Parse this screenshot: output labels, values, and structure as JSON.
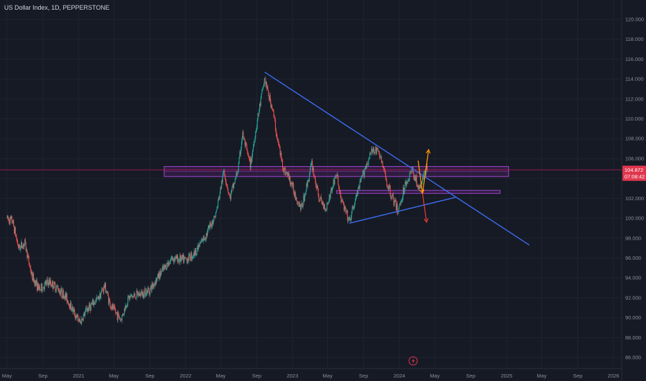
{
  "header": {
    "symbol_line": "US Dollar Index, 1D, PEPPERSTONE"
  },
  "colors": {
    "background": "#161a25",
    "grid": "#1f2430",
    "candle_up": "#26a69a",
    "candle_down": "#ef5350",
    "trendline": "#3d6df0",
    "zone_border": "#a447d6",
    "zone_fill": "rgba(156,39,176,0.18)",
    "price_line": "#c2185b",
    "price_tag": "#e0364d",
    "arrow_up": "#ff9800",
    "arrow_down": "#e53935",
    "axis_text": "#8a8e98"
  },
  "chart_data": {
    "type": "candlestick",
    "title": "US Dollar Index, 1D, PEPPERSTONE",
    "x_ticks": [
      "May",
      "Sep",
      "2021",
      "May",
      "Sep",
      "2022",
      "May",
      "Sep",
      "2023",
      "May",
      "Sep",
      "2024",
      "May",
      "Sep",
      "2025",
      "May",
      "Sep",
      "2026"
    ],
    "y_ticks": [
      "120.000",
      "118.000",
      "116.000",
      "114.000",
      "112.000",
      "110.000",
      "108.000",
      "106.000",
      "104.000",
      "102.000",
      "100.000",
      "98.000",
      "96.000",
      "94.000",
      "92.000",
      "90.000",
      "88.000",
      "86.000"
    ],
    "ylim": [
      85.5,
      121.5
    ],
    "x_range": [
      "2020-05-01",
      "2026-01-01"
    ],
    "current_price": {
      "value": "104.872",
      "countdown": "07:08:42"
    },
    "price_anchors": [
      [
        "2020-05-01",
        100.0
      ],
      [
        "2020-05-20",
        99.7
      ],
      [
        "2020-06-10",
        97.0
      ],
      [
        "2020-07-01",
        97.5
      ],
      [
        "2020-07-25",
        94.2
      ],
      [
        "2020-08-20",
        92.8
      ],
      [
        "2020-09-20",
        93.6
      ],
      [
        "2020-10-20",
        93.0
      ],
      [
        "2020-11-20",
        92.0
      ],
      [
        "2020-12-20",
        90.3
      ],
      [
        "2021-01-06",
        89.5
      ],
      [
        "2021-01-28",
        90.8
      ],
      [
        "2021-03-05",
        91.8
      ],
      [
        "2021-03-31",
        93.2
      ],
      [
        "2021-04-20",
        91.2
      ],
      [
        "2021-05-25",
        89.8
      ],
      [
        "2021-06-20",
        92.0
      ],
      [
        "2021-08-01",
        92.4
      ],
      [
        "2021-09-01",
        92.8
      ],
      [
        "2021-10-01",
        94.2
      ],
      [
        "2021-11-15",
        96.0
      ],
      [
        "2021-12-31",
        95.8
      ],
      [
        "2022-02-01",
        96.5
      ],
      [
        "2022-03-15",
        98.5
      ],
      [
        "2022-04-15",
        100.5
      ],
      [
        "2022-05-12",
        104.8
      ],
      [
        "2022-06-01",
        102.0
      ],
      [
        "2022-06-30",
        105.0
      ],
      [
        "2022-07-14",
        108.5
      ],
      [
        "2022-08-10",
        105.3
      ],
      [
        "2022-09-01",
        109.5
      ],
      [
        "2022-09-28",
        114.1
      ],
      [
        "2022-10-10",
        112.5
      ],
      [
        "2022-10-25",
        111.0
      ],
      [
        "2022-11-10",
        108.0
      ],
      [
        "2022-12-01",
        105.0
      ],
      [
        "2022-12-20",
        104.1
      ],
      [
        "2023-01-15",
        102.0
      ],
      [
        "2023-02-01",
        101.0
      ],
      [
        "2023-03-08",
        105.5
      ],
      [
        "2023-04-01",
        102.0
      ],
      [
        "2023-04-25",
        101.0
      ],
      [
        "2023-05-31",
        104.5
      ],
      [
        "2023-06-15",
        102.0
      ],
      [
        "2023-07-14",
        99.6
      ],
      [
        "2023-08-10",
        102.5
      ],
      [
        "2023-09-05",
        105.0
      ],
      [
        "2023-10-03",
        107.0
      ],
      [
        "2023-10-25",
        106.5
      ],
      [
        "2023-11-20",
        103.5
      ],
      [
        "2023-12-27",
        100.7
      ],
      [
        "2024-01-20",
        103.3
      ],
      [
        "2024-02-14",
        104.9
      ],
      [
        "2024-03-10",
        102.8
      ],
      [
        "2024-03-25",
        104.5
      ],
      [
        "2024-04-05",
        104.9
      ]
    ],
    "drawings": {
      "upper_trendline": {
        "from": [
          "2022-09-28",
          114.7
        ],
        "to": [
          "2025-03-20",
          97.3
        ]
      },
      "lower_trendline": {
        "from": [
          "2023-07-14",
          99.5
        ],
        "to": [
          "2024-07-10",
          102.1
        ]
      },
      "supply_zone": {
        "from": "2021-10-20",
        "to": "2025-01-08",
        "top": 105.2,
        "bottom": 104.2
      },
      "small_zone": {
        "from": "2023-06-01",
        "to": "2024-12-10",
        "top": 102.8,
        "bottom": 102.5
      },
      "price_line": 104.872,
      "arrow_up": {
        "from": [
          "2024-03-05",
          105.8
        ],
        "mid": [
          "2024-03-20",
          102.5
        ],
        "to": [
          "2024-04-10",
          106.9
        ]
      },
      "arrow_down": {
        "from": [
          "2024-03-20",
          102.5
        ],
        "to": [
          "2024-04-03",
          99.6
        ]
      }
    }
  }
}
